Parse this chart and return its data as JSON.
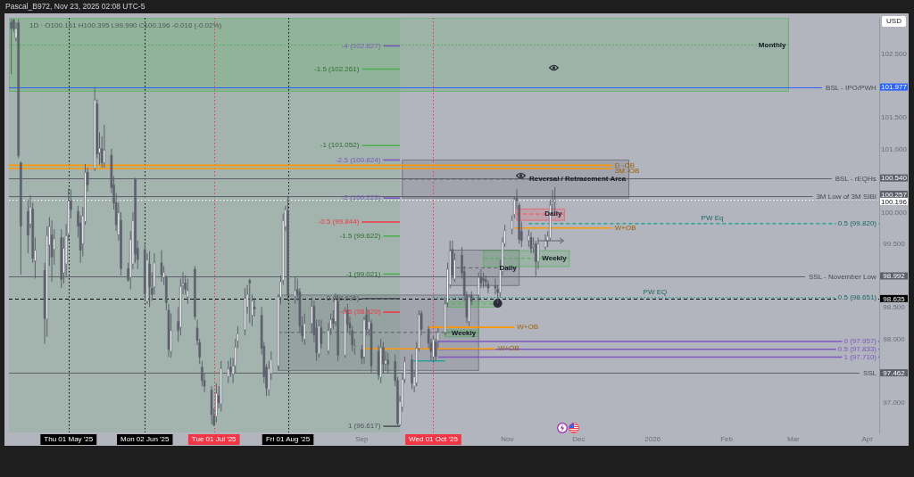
{
  "chart_data": {
    "type": "candlestick",
    "title": "Pascal_B972, Nov 23, 2025 02:08 UTC-5",
    "subtitle": "1D · O100.161 H100.395 L99.990 C100.196 -0.016 (-0.02%)",
    "ylabel": "USD",
    "xlim": [
      "2025-04-06",
      "2026-04-06"
    ],
    "xticks": [
      {
        "value": "2025-05-01",
        "label": "Thu 01 May '25"
      },
      {
        "value": "2025-06-02",
        "label": "Mon 02 Jun '25"
      },
      {
        "value": "2025-07-01",
        "label": "Tue 01 Jul '25"
      },
      {
        "value": "2025-08-01",
        "label": "Fri 01 Aug '25"
      },
      {
        "value": "2025-09-01",
        "label": "Sep"
      },
      {
        "value": "2025-10-01",
        "label": "Wed 01 Oct '25"
      },
      {
        "value": "2025-11-01",
        "label": "Nov"
      },
      {
        "value": "2025-12-01",
        "label": "Dec"
      },
      {
        "value": "2026-01-01",
        "label": "2026"
      },
      {
        "value": "2026-02-01",
        "label": "Feb"
      },
      {
        "value": "2026-03-01",
        "label": "Mar"
      },
      {
        "value": "2026-04-01",
        "label": "Apr"
      }
    ],
    "ylim": [
      96.52,
      103.07
    ],
    "yticks": [
      {
        "value": 102.5,
        "label": "102.500"
      },
      {
        "value": 101.977,
        "label": "101.977"
      },
      {
        "value": 101.5,
        "label": "101.500"
      },
      {
        "value": 101,
        "label": "101.000"
      },
      {
        "value": 100.54,
        "label": "100.540"
      },
      {
        "value": 100.257,
        "label": "100.257"
      },
      {
        "value": 100.196,
        "label": "100.196"
      },
      {
        "value": 100,
        "label": "100.000"
      },
      {
        "value": 99.5,
        "label": "99.500"
      },
      {
        "value": 98.992,
        "label": "98.992"
      },
      {
        "value": 98.635,
        "label": "98.635"
      },
      {
        "value": 98.5,
        "label": "98.500"
      },
      {
        "value": 98,
        "label": "98.000"
      },
      {
        "value": 97.462,
        "label": "97.462"
      },
      {
        "value": 97,
        "label": "97.000"
      }
    ],
    "x": [
      "2025-04-07",
      "2025-04-08",
      "2025-04-09",
      "2025-04-10",
      "2025-04-11",
      "2025-04-14",
      "2025-04-15",
      "2025-04-16",
      "2025-04-17",
      "2025-04-21",
      "2025-04-22",
      "2025-04-23",
      "2025-04-24",
      "2025-04-25",
      "2025-04-28",
      "2025-04-29",
      "2025-04-30",
      "2025-05-01",
      "2025-05-02",
      "2025-05-05",
      "2025-05-06",
      "2025-05-07",
      "2025-05-08",
      "2025-05-09",
      "2025-05-12",
      "2025-05-13",
      "2025-05-14",
      "2025-05-15",
      "2025-05-16",
      "2025-05-19",
      "2025-05-20",
      "2025-05-21",
      "2025-05-22",
      "2025-05-23",
      "2025-05-26",
      "2025-05-27",
      "2025-05-28",
      "2025-05-29",
      "2025-05-30",
      "2025-06-02",
      "2025-06-03",
      "2025-06-04",
      "2025-06-05",
      "2025-06-06",
      "2025-06-09",
      "2025-06-10",
      "2025-06-11",
      "2025-06-12",
      "2025-06-13",
      "2025-06-16",
      "2025-06-17",
      "2025-06-18",
      "2025-06-19",
      "2025-06-20",
      "2025-06-23",
      "2025-06-24",
      "2025-06-25",
      "2025-06-26",
      "2025-06-27",
      "2025-06-30",
      "2025-07-01",
      "2025-07-02",
      "2025-07-03",
      "2025-07-04",
      "2025-07-07",
      "2025-07-08",
      "2025-07-09",
      "2025-07-10",
      "2025-07-11",
      "2025-07-14",
      "2025-07-15",
      "2025-07-16",
      "2025-07-17",
      "2025-07-18",
      "2025-07-21",
      "2025-07-22",
      "2025-07-23",
      "2025-07-24",
      "2025-07-25",
      "2025-07-28",
      "2025-07-29",
      "2025-07-30",
      "2025-07-31",
      "2025-08-01",
      "2025-08-04",
      "2025-08-05",
      "2025-08-06",
      "2025-08-07",
      "2025-08-08",
      "2025-08-11",
      "2025-08-12",
      "2025-08-13",
      "2025-08-14",
      "2025-08-15",
      "2025-08-18",
      "2025-08-19",
      "2025-08-20",
      "2025-08-21",
      "2025-08-22",
      "2025-08-25",
      "2025-08-26",
      "2025-08-27",
      "2025-08-28",
      "2025-08-29",
      "2025-09-01",
      "2025-09-02",
      "2025-09-03",
      "2025-09-04",
      "2025-09-05",
      "2025-09-08",
      "2025-09-09",
      "2025-09-10",
      "2025-09-11",
      "2025-09-12",
      "2025-09-15",
      "2025-09-16",
      "2025-09-17",
      "2025-09-18",
      "2025-09-19",
      "2025-09-22",
      "2025-09-23",
      "2025-09-24",
      "2025-09-25",
      "2025-09-26",
      "2025-09-29",
      "2025-09-30",
      "2025-10-01",
      "2025-10-02",
      "2025-10-03",
      "2025-10-06",
      "2025-10-07",
      "2025-10-08",
      "2025-10-09",
      "2025-10-10",
      "2025-10-13",
      "2025-10-14",
      "2025-10-15",
      "2025-10-16",
      "2025-10-17",
      "2025-10-20",
      "2025-10-21",
      "2025-10-22",
      "2025-10-23",
      "2025-10-24",
      "2025-10-27",
      "2025-10-28",
      "2025-10-29",
      "2025-10-30",
      "2025-10-31",
      "2025-11-03",
      "2025-11-04",
      "2025-11-05",
      "2025-11-06",
      "2025-11-07",
      "2025-11-10",
      "2025-11-11",
      "2025-11-12",
      "2025-11-13",
      "2025-11-14",
      "2025-11-17",
      "2025-11-18",
      "2025-11-19",
      "2025-11-20",
      "2025-11-21"
    ],
    "ohlc": [
      [
        103,
        103.05,
        102.18,
        102.9
      ],
      [
        103.04,
        103.05,
        102.85,
        102.9
      ],
      [
        102.75,
        103,
        102.7,
        102.9
      ],
      [
        102.99,
        103.05,
        100.85,
        100.89
      ],
      [
        100.78,
        100.8,
        99.01,
        99.78
      ],
      [
        100.01,
        100.2,
        99.35,
        99.64
      ],
      [
        99.81,
        100.27,
        99.75,
        100.08
      ],
      [
        100.05,
        100.15,
        99.2,
        99.27
      ],
      [
        99.23,
        99.6,
        98.95,
        99.4
      ],
      [
        99.08,
        99.2,
        97.92,
        98.32
      ],
      [
        98.31,
        99.78,
        98.03,
        99.63
      ],
      [
        99.48,
        99.92,
        99.15,
        99.77
      ],
      [
        99.64,
        99.87,
        98.9,
        99.29
      ],
      [
        99.41,
        99.73,
        99.17,
        99.58
      ],
      [
        99.6,
        99.73,
        98.8,
        98.94
      ],
      [
        99.04,
        99.6,
        98.87,
        99.43
      ],
      [
        99.18,
        99.81,
        98.99,
        99.63
      ],
      [
        99.66,
        100.37,
        99.55,
        100.18
      ],
      [
        100.18,
        100.36,
        99.9,
        100.04
      ],
      [
        100.01,
        100.1,
        99.6,
        99.78
      ],
      [
        99.83,
        99.95,
        99.2,
        99.4
      ],
      [
        99.5,
        100.08,
        99.3,
        99.94
      ],
      [
        99.85,
        100.76,
        99.8,
        100.63
      ],
      [
        100.63,
        100.7,
        100.32,
        100.43
      ],
      [
        100.69,
        101.977,
        100.65,
        101.77
      ],
      [
        101.71,
        101.78,
        100.85,
        100.92
      ],
      [
        100.94,
        101.26,
        100.75,
        101.01
      ],
      [
        101,
        101.2,
        100.7,
        100.78
      ],
      [
        100.78,
        101.38,
        100.7,
        100.98
      ],
      [
        100.9,
        101,
        100.3,
        100.39
      ],
      [
        100.43,
        100.57,
        100.04,
        100.14
      ],
      [
        100.15,
        100.3,
        99.7,
        99.8
      ],
      [
        99.64,
        100.15,
        99.55,
        99.99
      ],
      [
        99.87,
        100,
        99,
        99.11
      ],
      [
        99.11,
        99.2,
        98.9,
        98.93
      ],
      [
        98.97,
        99.7,
        98.78,
        99.57
      ],
      [
        99.18,
        100,
        99.1,
        99.87
      ],
      [
        100.53,
        100.54,
        99.2,
        99.34
      ],
      [
        99.43,
        99.55,
        99.1,
        99.25
      ],
      [
        99.41,
        99.5,
        98.6,
        98.71
      ],
      [
        98.59,
        99.35,
        98.55,
        99.25
      ],
      [
        99.18,
        99.38,
        98.5,
        98.82
      ],
      [
        98.8,
        99.05,
        98.6,
        98.7
      ],
      [
        98.82,
        99.35,
        98.7,
        99.2
      ],
      [
        99.2,
        99.4,
        98.9,
        99.01
      ],
      [
        98.97,
        99.15,
        98.85,
        99.05
      ],
      [
        98.97,
        99,
        98.45,
        98.57
      ],
      [
        98.45,
        98.55,
        97.71,
        97.83
      ],
      [
        97.8,
        98.4,
        97.7,
        98.13
      ],
      [
        98.27,
        98.5,
        97.95,
        98.13
      ],
      [
        98.18,
        98.95,
        98.05,
        98.83
      ],
      [
        98.84,
        99.05,
        98.7,
        98.87
      ],
      [
        98.88,
        99,
        98.7,
        98.78
      ],
      [
        98.66,
        98.95,
        98.55,
        98.76
      ],
      [
        99.1,
        99.15,
        98.3,
        98.35
      ],
      [
        98.17,
        98.3,
        97.9,
        97.97
      ],
      [
        97.94,
        98,
        97.6,
        97.71
      ],
      [
        97.55,
        97.65,
        97.25,
        97.34
      ],
      [
        97.34,
        97.45,
        97.15,
        97.25
      ],
      [
        97.19,
        97.25,
        96.65,
        96.8
      ],
      [
        96.78,
        96.9,
        96.62,
        96.64
      ],
      [
        96.77,
        97.3,
        96.68,
        97.14
      ],
      [
        97.1,
        97.25,
        96.9,
        96.99
      ],
      [
        96.97,
        97.65,
        96.85,
        97.53
      ],
      [
        97.4,
        97.65,
        97.3,
        97.53
      ],
      [
        97.55,
        97.7,
        97.4,
        97.48
      ],
      [
        97.44,
        97.7,
        97.3,
        97.57
      ],
      [
        97.57,
        98,
        97.45,
        97.87
      ],
      [
        97.96,
        98.2,
        97.85,
        98.08
      ],
      [
        98.14,
        98.8,
        98.05,
        98.64
      ],
      [
        98.5,
        98.85,
        98.4,
        98.7
      ],
      [
        98.92,
        98.95,
        98.25,
        98.88
      ],
      [
        98.37,
        98.7,
        98.2,
        98.6
      ],
      [
        98.5,
        98.65,
        98.35,
        98.47
      ],
      [
        98.37,
        98.5,
        97.75,
        97.85
      ],
      [
        97.88,
        97.95,
        97.3,
        97.4
      ],
      [
        97.55,
        97.6,
        97.1,
        97.22
      ],
      [
        97.19,
        97.65,
        97.1,
        97.53
      ],
      [
        97.45,
        97.8,
        97.35,
        97.67
      ],
      [
        97.57,
        98.7,
        97.5,
        98.66
      ],
      [
        98.66,
        99,
        98.55,
        98.9
      ],
      [
        98.92,
        99.98,
        98.85,
        99.87
      ],
      [
        99.77,
        100.1,
        99.7,
        100.04
      ],
      [
        100.02,
        100.257,
        98.6,
        98.69
      ],
      [
        98.67,
        98.98,
        98.55,
        98.76
      ],
      [
        98.78,
        98.95,
        98.6,
        98.7
      ],
      [
        98.74,
        98.8,
        98.1,
        98.2
      ],
      [
        98.2,
        98.35,
        97.95,
        98.05
      ],
      [
        97.99,
        98.4,
        97.9,
        98.24
      ],
      [
        98.24,
        98.65,
        98.1,
        98.51
      ],
      [
        98.51,
        98.6,
        97.95,
        98.06
      ],
      [
        98.17,
        98.3,
        97.65,
        97.78
      ],
      [
        97.76,
        98.3,
        97.7,
        98.2
      ],
      [
        98.17,
        98.3,
        97.85,
        97.92
      ],
      [
        97.81,
        98.25,
        97.75,
        98.13
      ],
      [
        98.16,
        98.4,
        98.05,
        98.3
      ],
      [
        98.32,
        98.45,
        98.15,
        98.24
      ],
      [
        98.27,
        98.72,
        98.2,
        98.62
      ],
      [
        98.59,
        98.7,
        97.65,
        97.74
      ],
      [
        97.74,
        98.5,
        97.7,
        98.43
      ],
      [
        98.45,
        98.55,
        98.1,
        98.23
      ],
      [
        98.24,
        98.35,
        98.05,
        98.17
      ],
      [
        98.13,
        98.2,
        97.8,
        97.9
      ],
      [
        97.86,
        98,
        97.75,
        97.88
      ],
      [
        97.83,
        97.9,
        97.6,
        97.69
      ],
      [
        97.71,
        98.35,
        97.6,
        98.3
      ],
      [
        98.38,
        98.5,
        98.05,
        98.15
      ],
      [
        98.15,
        98.45,
        98.05,
        98.27
      ],
      [
        98.24,
        98.3,
        97.45,
        97.57
      ],
      [
        97.8,
        97.9,
        97.35,
        97.43
      ],
      [
        97.39,
        98,
        97.3,
        97.86
      ],
      [
        97.86,
        97.95,
        97.45,
        97.6
      ],
      [
        97.6,
        97.8,
        97.5,
        97.66
      ],
      [
        97.66,
        97.78,
        97.45,
        97.6
      ],
      [
        97.64,
        97.75,
        97.25,
        97.34
      ],
      [
        97.34,
        97.4,
        96.617,
        96.66
      ],
      [
        96.64,
        97.1,
        96.62,
        97.01
      ],
      [
        96.92,
        97.45,
        96.85,
        97.36
      ],
      [
        97.36,
        97.72,
        97.3,
        97.64
      ],
      [
        97.67,
        97.75,
        97.2,
        97.3
      ],
      [
        97.25,
        97.5,
        97.15,
        97.4
      ],
      [
        97.3,
        97.95,
        97.25,
        97.85
      ],
      [
        97.85,
        98.45,
        97.8,
        98.38
      ],
      [
        98.4,
        98.45,
        98.05,
        98.15
      ],
      [
        98.15,
        98.2,
        97.85,
        97.93
      ],
      [
        97.93,
        98,
        97.65,
        97.8
      ],
      [
        97.71,
        98.05,
        97.62,
        97.99
      ],
      [
        97.95,
        98,
        97.65,
        97.72
      ],
      [
        97.97,
        98.17,
        97.85,
        98.1
      ],
      [
        98.1,
        98.65,
        98.05,
        98.55
      ],
      [
        98.57,
        99.2,
        98.5,
        99.1
      ],
      [
        98.85,
        99.55,
        98.8,
        99.39
      ],
      [
        99.41,
        99.55,
        98.95,
        99.01
      ],
      [
        98.94,
        99.35,
        98.9,
        99.25
      ],
      [
        99.32,
        99.45,
        98.95,
        99.04
      ],
      [
        99.06,
        99.15,
        98.6,
        98.69
      ],
      [
        98.69,
        98.75,
        98.25,
        98.34
      ],
      [
        98.27,
        98.7,
        98.2,
        98.66
      ],
      [
        98.69,
        98.75,
        98.54,
        98.59
      ],
      [
        98.69,
        99.05,
        98.6,
        98.97
      ],
      [
        98.98,
        99.1,
        98.8,
        98.88
      ],
      [
        98.95,
        99.05,
        98.8,
        98.92
      ],
      [
        98.93,
        99,
        98.82,
        98.9
      ],
      [
        98.86,
        98.92,
        98.72,
        98.8
      ],
      [
        98.84,
        98.95,
        98.7,
        98.8
      ],
      [
        98.78,
        98.85,
        98.56,
        98.73
      ],
      [
        98.73,
        99.25,
        98.65,
        99.13
      ],
      [
        99.06,
        99.6,
        99,
        99.53
      ],
      [
        99.5,
        99.8,
        99.45,
        99.71
      ],
      [
        99.73,
        99.95,
        99.65,
        99.87
      ],
      [
        99.96,
        100.25,
        99.9,
        100.2
      ],
      [
        100.22,
        100.36,
        100.05,
        100.18
      ],
      [
        100.11,
        100.15,
        99.5,
        99.57
      ],
      [
        99.7,
        99.85,
        99.45,
        99.55
      ],
      [
        99.55,
        99.72,
        99.45,
        99.63
      ],
      [
        99.6,
        99.68,
        99.35,
        99.42
      ],
      [
        99.46,
        99.6,
        99.35,
        99.48
      ],
      [
        99.5,
        99.55,
        98.992,
        99.22
      ],
      [
        99.22,
        99.6,
        99.1,
        99.5
      ],
      [
        99.45,
        99.65,
        99.4,
        99.55
      ],
      [
        99.55,
        99.7,
        99.45,
        99.62
      ],
      [
        99.59,
        100.2,
        99.55,
        100.11
      ],
      [
        100.13,
        100.35,
        100,
        100.16
      ],
      [
        100.161,
        100.395,
        99.99,
        100.196
      ]
    ],
    "colors": [
      "#5d606b",
      "#5d606b",
      "#ffffff",
      "#5d606b",
      "#5d606b",
      "#5d606b",
      "#ffffff",
      "#5d606b",
      "#ffffff",
      "#5d606b",
      "#ffffff",
      "#ffffff",
      "#5d606b",
      "#ffffff",
      "#5d606b",
      "#ffffff",
      "#ffffff",
      "#ffffff",
      "#5d606b",
      "#5d606b",
      "#5d606b",
      "#ffffff",
      "#ffffff",
      "#5d606b",
      "#ffffff",
      "#5d606b",
      "#ffffff",
      "#5d606b",
      "#ffffff",
      "#5d606b",
      "#5d606b",
      "#5d606b",
      "#ffffff",
      "#5d606b",
      "#5d606b",
      "#ffffff",
      "#ffffff",
      "#5d606b",
      "#5d606b",
      "#5d606b",
      "#ffffff",
      "#5d606b",
      "#5d606b",
      "#ffffff",
      "#5d606b",
      "#ffffff",
      "#5d606b",
      "#5d606b",
      "#ffffff",
      "#5d606b",
      "#ffffff",
      "#ffffff",
      "#5d606b",
      "#ffffff",
      "#5d606b",
      "#5d606b",
      "#5d606b",
      "#5d606b",
      "#5d606b",
      "#5d606b",
      "#5d606b",
      "#ffffff",
      "#5d606b",
      "#ffffff",
      "#ffffff",
      "#5d606b",
      "#ffffff",
      "#ffffff",
      "#ffffff",
      "#ffffff",
      "#ffffff",
      "#5d606b",
      "#ffffff",
      "#5d606b",
      "#5d606b",
      "#5d606b",
      "#5d606b",
      "#ffffff",
      "#ffffff",
      "#ffffff",
      "#ffffff",
      "#ffffff",
      "#ffffff",
      "#5d606b",
      "#ffffff",
      "#5d606b",
      "#5d606b",
      "#5d606b",
      "#ffffff",
      "#ffffff",
      "#5d606b",
      "#5d606b",
      "#ffffff",
      "#5d606b",
      "#ffffff",
      "#ffffff",
      "#5d606b",
      "#ffffff",
      "#5d606b",
      "#ffffff",
      "#5d606b",
      "#5d606b",
      "#5d606b",
      "#ffffff",
      "#5d606b",
      "#ffffff",
      "#5d606b",
      "#ffffff",
      "#5d606b",
      "#5d606b",
      "#ffffff",
      "#5d606b",
      "#ffffff",
      "#5d606b",
      "#5d606b",
      "#5d606b",
      "#ffffff",
      "#ffffff",
      "#ffffff",
      "#5d606b",
      "#ffffff",
      "#ffffff",
      "#ffffff",
      "#5d606b",
      "#5d606b",
      "#5d606b",
      "#ffffff",
      "#5d606b",
      "#ffffff",
      "#ffffff",
      "#ffffff",
      "#ffffff",
      "#5d606b",
      "#ffffff",
      "#5d606b",
      "#5d606b",
      "#5d606b",
      "#ffffff",
      "#5d606b",
      "#ffffff",
      "#5d606b",
      "#5d606b",
      "#5d606b",
      "#5d606b",
      "#5d606b",
      "#5d606b",
      "#ffffff",
      "#ffffff",
      "#ffffff",
      "#ffffff",
      "#ffffff",
      "#5d606b",
      "#5d606b",
      "#5d606b",
      "#ffffff",
      "#5d606b",
      "#ffffff",
      "#5d606b",
      "#ffffff",
      "#ffffff",
      "#ffffff",
      "#ffffff",
      "#ffffff",
      "#ffffff"
    ],
    "bands": [
      {
        "axis": "x",
        "from": "2025-04-06",
        "to": "2025-09-17",
        "color": "#4caf50"
      }
    ],
    "ref_lines": [
      {
        "axis": "x",
        "value": "2025-05-01",
        "color": "#000000",
        "line_style": "dotted"
      },
      {
        "axis": "x",
        "value": "2025-06-02",
        "color": "#000000",
        "line_style": "dotted"
      },
      {
        "axis": "x",
        "value": "2025-07-01",
        "color": "#f23645",
        "line_style": "dotted"
      },
      {
        "axis": "x",
        "value": "2025-08-01",
        "color": "#000000",
        "line_style": "dotted"
      },
      {
        "axis": "x",
        "value": "2025-10-01",
        "color": "#f23645",
        "line_style": "dotted"
      },
      {
        "axis": "y",
        "value": 101.977,
        "color": "#2962ff",
        "label": "BSL - IPO/PWH"
      },
      {
        "axis": "y",
        "value": 100.54,
        "color": "#5d606b",
        "label": "BSL - rEQHs"
      },
      {
        "axis": "y",
        "value": 100.257,
        "color": "#5d606b",
        "label": "3M Low of 3M SIBI"
      },
      {
        "axis": "y",
        "value": 100.196,
        "color": "#ffffff",
        "line_style": "dotted"
      },
      {
        "axis": "y",
        "value": 98.992,
        "color": "#5d606b",
        "label": "SSL - November Low"
      },
      {
        "axis": "y",
        "value": 98.635,
        "color": "#000000",
        "line_style": "dashed"
      },
      {
        "axis": "y",
        "value": 97.462,
        "color": "#5d606b",
        "label": "SSL"
      }
    ],
    "series": [
      {
        "type": "line",
        "name": "Monthly",
        "color": "#4caf50",
        "line_style": "dotted",
        "x": [
          "2025-04-06",
          "2026-02-27"
        ],
        "values": [
          102.64,
          102.64
        ],
        "lower": [
          101.91,
          101.91
        ],
        "upper": [
          103.07,
          103.07
        ]
      },
      {
        "type": "line",
        "name": "Reversal / Retracement Area",
        "color": "#5d606b",
        "line_style": "dashed",
        "x": [
          "2025-09-18",
          "2025-12-22"
        ],
        "values": [
          100.52,
          100.52
        ],
        "lower": [
          100.223,
          100.223
        ],
        "upper": [
          100.824,
          100.824
        ]
      },
      {
        "type": "line",
        "color": "#5d606b",
        "line_style": "dashed",
        "x": [
          "2025-07-28",
          "2025-10-20"
        ],
        "values": [
          98.1,
          98.1
        ],
        "lower": [
          97.5,
          97.5
        ],
        "upper": [
          98.69,
          98.69
        ]
      },
      {
        "type": "line",
        "name": "Daily",
        "color": "#5d606b",
        "line_style": "dashed",
        "x": [
          "2025-10-08",
          "2025-11-06"
        ],
        "values": [
          99.12,
          99.12
        ],
        "lower": [
          98.84,
          98.84
        ],
        "upper": [
          99.4,
          99.4
        ]
      },
      {
        "type": "line",
        "name": "Weekly",
        "color": "#4caf50",
        "line_style": "dashed",
        "x": [
          "2025-10-22",
          "2025-11-27"
        ],
        "values": [
          99.27,
          99.27
        ],
        "lower": [
          99.14,
          99.14
        ],
        "upper": [
          99.39,
          99.39
        ]
      },
      {
        "type": "line",
        "name": "Weekly",
        "color": "#4caf50",
        "line_style": "dashed",
        "x": [
          "2025-10-06",
          "2025-10-20"
        ],
        "values": [
          98.09,
          98.09
        ],
        "lower": [
          98.03,
          98.03
        ],
        "upper": [
          98.14,
          98.14
        ]
      },
      {
        "type": "line",
        "color": "#4caf50",
        "line_style": "dashed",
        "x": [
          "2025-10-06",
          "2025-10-28"
        ],
        "values": [
          98.55,
          98.55
        ],
        "lower": [
          98.5,
          98.5
        ],
        "upper": [
          98.59,
          98.59
        ]
      },
      {
        "type": "line",
        "name": "Daily",
        "color": "#f7525f",
        "line_style": "dashed",
        "x": [
          "2025-11-05",
          "2025-11-25"
        ],
        "values": [
          99.97,
          99.97
        ],
        "lower": [
          99.87,
          99.87
        ],
        "upper": [
          100.05,
          100.05
        ]
      },
      {
        "type": "line",
        "name": "D -OB",
        "color": "#ff9800",
        "x": [
          "2025-04-06",
          "2025-12-15"
        ],
        "values": [
          100.74,
          100.74
        ]
      },
      {
        "type": "line",
        "name": "3M -OB",
        "color": "#ff9800",
        "x": [
          "2025-04-06",
          "2025-12-15"
        ],
        "values": [
          100.69,
          100.69
        ]
      },
      {
        "type": "line",
        "name": "-4 (102.627)",
        "color": "#7e57c2",
        "x": [
          "2025-09-10",
          "2025-09-17"
        ],
        "values": [
          102.627,
          102.627
        ]
      },
      {
        "type": "line",
        "name": "-1.5 (102.261)",
        "color": "#4caf50",
        "x": [
          "2025-09-01",
          "2025-09-17"
        ],
        "values": [
          102.261,
          102.261
        ]
      },
      {
        "type": "line",
        "name": "-1 (101.052)",
        "color": "#4caf50",
        "x": [
          "2025-09-01",
          "2025-09-17"
        ],
        "values": [
          101.052,
          101.052
        ]
      },
      {
        "type": "line",
        "name": "-2.5 (100.824)",
        "color": "#7e57c2",
        "x": [
          "2025-09-10",
          "2025-09-17"
        ],
        "values": [
          100.824,
          100.824
        ]
      },
      {
        "type": "line",
        "name": "-2 (100.223)",
        "color": "#7e57c2",
        "x": [
          "2025-09-10",
          "2025-09-17"
        ],
        "values": [
          100.223,
          100.223
        ]
      },
      {
        "type": "line",
        "name": "-0.5 (99.844)",
        "color": "#f23645",
        "x": [
          "2025-09-01",
          "2025-09-17"
        ],
        "values": [
          99.844,
          99.844
        ]
      },
      {
        "type": "line",
        "name": "-1.5 (99.622)",
        "color": "#4caf50",
        "x": [
          "2025-09-10",
          "2025-09-17"
        ],
        "values": [
          99.622,
          99.622
        ]
      },
      {
        "type": "line",
        "name": "-1 (99.021)",
        "color": "#4caf50",
        "x": [
          "2025-09-10",
          "2025-09-17"
        ],
        "values": [
          99.021,
          99.021
        ]
      },
      {
        "type": "line",
        "name": "0 (98.635)",
        "color": "#50535e",
        "x": [
          "2025-09-01",
          "2025-09-17"
        ],
        "values": [
          98.635,
          98.635
        ]
      },
      {
        "type": "line",
        "name": "-0.5 (98.420)",
        "color": "#f23645",
        "x": [
          "2025-09-10",
          "2025-09-17"
        ],
        "values": [
          98.42,
          98.42
        ]
      },
      {
        "type": "line",
        "name": "1 (96.617)",
        "color": "#50535e",
        "x": [
          "2025-09-10",
          "2025-09-17"
        ],
        "values": [
          96.617,
          96.617
        ]
      },
      {
        "type": "line",
        "name": "0 (97.957)",
        "color": "#7e57c2",
        "x": [
          "2025-10-03",
          "2026-04-06"
        ],
        "values": [
          97.957,
          97.957
        ]
      },
      {
        "type": "line",
        "name": "0.5 (97.833)",
        "color": "#7e57c2",
        "x": [
          "2025-10-03",
          "2026-04-06"
        ],
        "values": [
          97.833,
          97.833
        ]
      },
      {
        "type": "line",
        "name": "1 (97.710)",
        "color": "#7e57c2",
        "x": [
          "2025-10-03",
          "2026-04-06"
        ],
        "values": [
          97.71,
          97.71
        ]
      },
      {
        "type": "line",
        "name": "0.5 (99.820)",
        "color": "#26a69a",
        "line_style": "dashed",
        "x": [
          "2025-11-10",
          "2026-04-06"
        ],
        "values": [
          99.82,
          99.82
        ]
      },
      {
        "type": "line",
        "name": "0.5 (98.651)",
        "color": "#26a69a",
        "line_style": "dotted",
        "x": [
          "2025-10-01",
          "2026-04-06"
        ],
        "values": [
          98.651,
          98.651
        ]
      },
      {
        "type": "line",
        "name": "W+OB",
        "color": "#ff9800",
        "x": [
          "2025-11-04",
          "2025-12-15"
        ],
        "values": [
          99.75,
          99.75
        ]
      },
      {
        "type": "line",
        "name": "W+OB",
        "color": "#ff9800",
        "x": [
          "2025-09-29",
          "2025-11-04"
        ],
        "values": [
          98.18,
          98.18
        ]
      },
      {
        "type": "line",
        "name": "W+OB",
        "color": "#ff9800",
        "x": [
          "2025-09-01",
          "2025-10-27"
        ],
        "values": [
          97.84,
          97.84
        ]
      },
      {
        "type": "line",
        "color": "#26a69a",
        "x": [
          "2025-09-22",
          "2025-10-06"
        ],
        "values": [
          97.65,
          97.65
        ]
      },
      {
        "type": "scatter",
        "color": "#2a2e39",
        "marker": "circle",
        "x": [
          "2025-10-28"
        ],
        "values": [
          98.56
        ]
      }
    ],
    "annotations": [
      {
        "text": "PW Eq",
        "x": "2026-01-26",
        "y": 99.82
      },
      {
        "text": "PW EQ",
        "x": "2026-01-02",
        "y": 98.651
      }
    ]
  }
}
